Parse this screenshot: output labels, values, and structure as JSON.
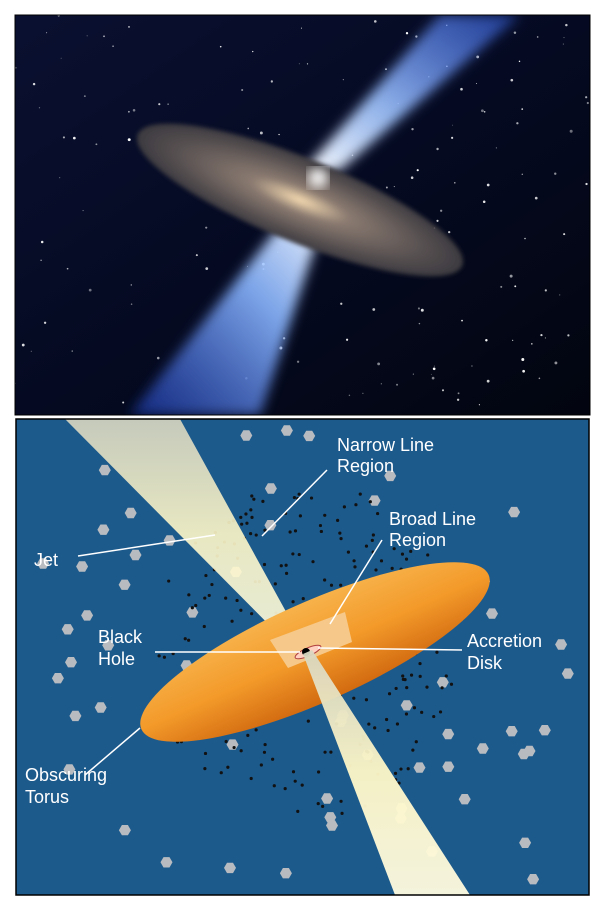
{
  "labels": [
    {
      "lines": [
        "Narrow Line",
        "Region"
      ]
    },
    {
      "lines": [
        "Broad Line",
        "Region"
      ]
    },
    {
      "lines": [
        "Jet"
      ]
    },
    {
      "lines": [
        "Black",
        "Hole"
      ]
    },
    {
      "lines": [
        "Accretion",
        "Disk"
      ]
    },
    {
      "lines": [
        "Obscuring",
        "Torus"
      ]
    }
  ]
}
